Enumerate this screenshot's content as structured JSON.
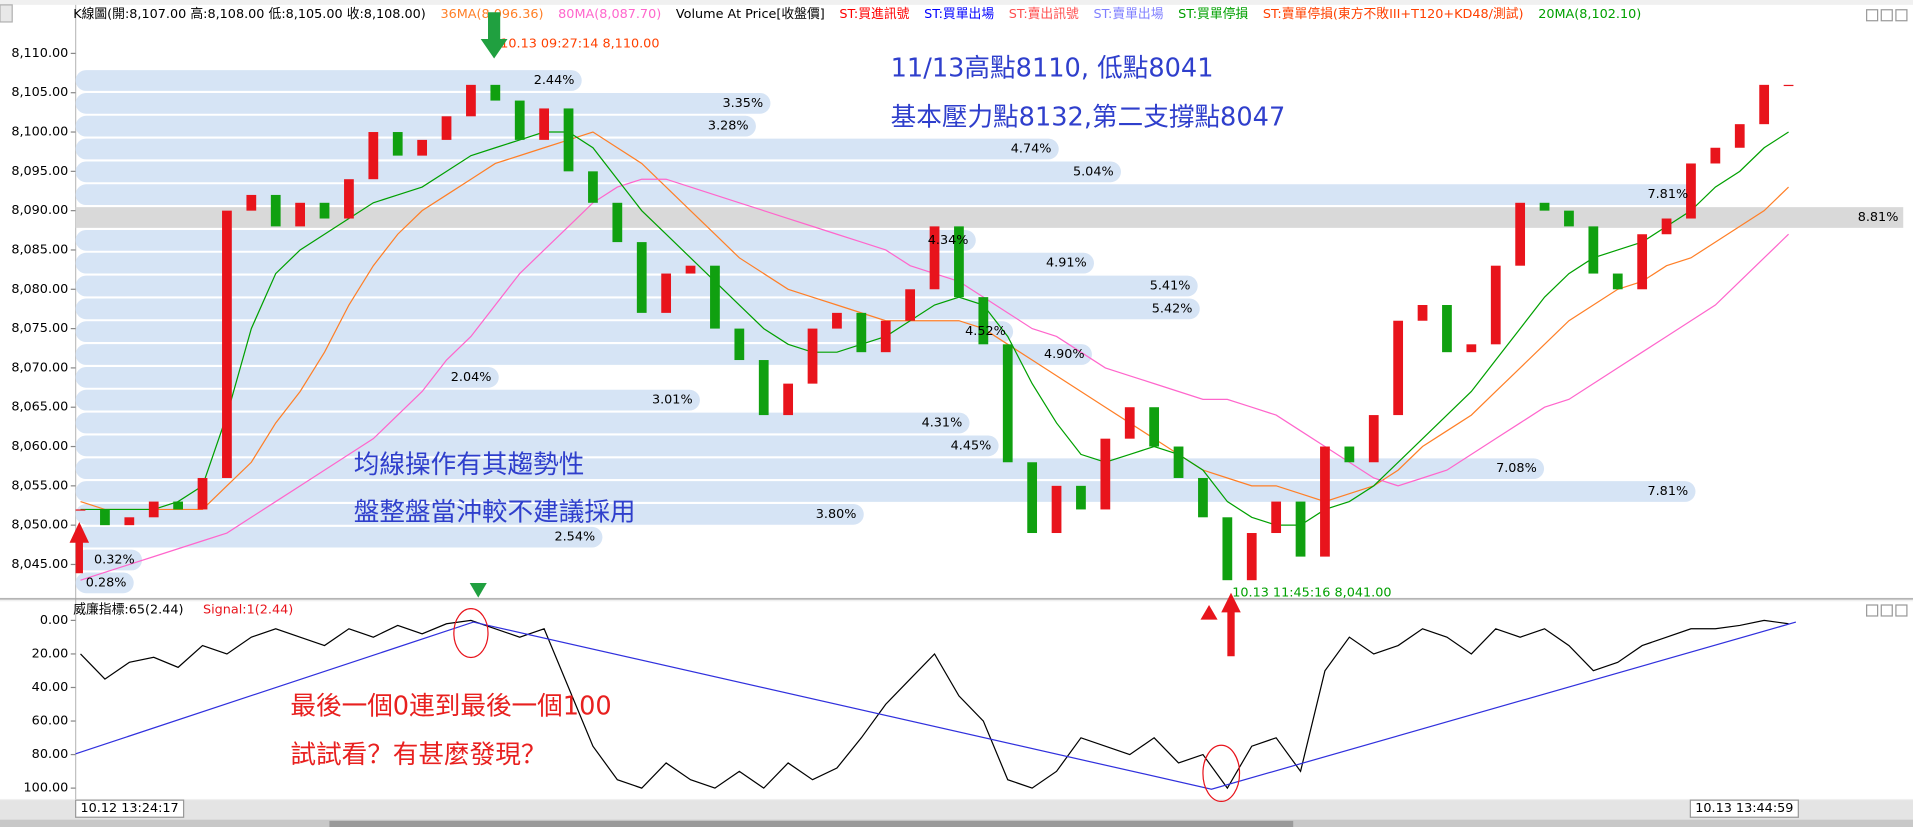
{
  "time_labels": [
    "10.12 13:24:17",
    "10.13 13:44:59"
  ],
  "chart_data": [
    {
      "type": "candlestick",
      "legend_items": [
        {
          "name": "K線圖(開:8,107.00 高:8,108.00 低:8,105.00 收:8,108.00)",
          "color": "#000000"
        },
        {
          "name": "Volume At Price[收盤價]",
          "color": "#000000"
        },
        {
          "name": "ST:買進訊號",
          "color": "#ff0000"
        },
        {
          "name": "ST:買單出場",
          "color": "#0000ff"
        },
        {
          "name": "ST:賣出訊號",
          "color": "#ff5050"
        },
        {
          "name": "ST:賣單出場",
          "color": "#8080ff"
        },
        {
          "name": "ST:買單停損",
          "color": "#00a000"
        },
        {
          "name": "ST:賣單停損(東方不敗III+T120+KD48/測試)",
          "color": "#ff4000"
        }
      ],
      "up_color": "#e8141c",
      "down_color": "#10a010",
      "ylim": [
        8040,
        8114
      ],
      "yticks": [
        {
          "value": 8045,
          "label": "8,045.00"
        },
        {
          "value": 8050,
          "label": "8,050.00"
        },
        {
          "value": 8055,
          "label": "8,055.00"
        },
        {
          "value": 8060,
          "label": "8,060.00"
        },
        {
          "value": 8065,
          "label": "8,065.00"
        },
        {
          "value": 8070,
          "label": "8,070.00"
        },
        {
          "value": 8075,
          "label": "8,075.00"
        },
        {
          "value": 8080,
          "label": "8,080.00"
        },
        {
          "value": 8085,
          "label": "8,085.00"
        },
        {
          "value": 8090,
          "label": "8,090.00"
        },
        {
          "value": 8095,
          "label": "8,095.00"
        },
        {
          "value": 8100,
          "label": "8,100.00"
        },
        {
          "value": 8105,
          "label": "8,105.00"
        },
        {
          "value": 8110,
          "label": "8,110.00"
        }
      ],
      "values": [
        8052,
        8050,
        8051,
        8053,
        8052,
        8056,
        8090,
        8092,
        8088,
        8091,
        8089,
        8094,
        8100,
        8097,
        8099,
        8102,
        8106,
        8104,
        8099,
        8103,
        8095,
        8091,
        8086,
        8077,
        8082,
        8083,
        8075,
        8071,
        8064,
        8068,
        8075,
        8077,
        8072,
        8076,
        8080,
        8088,
        8079,
        8073,
        8058,
        8049,
        8055,
        8052,
        8061,
        8065,
        8060,
        8056,
        8051,
        8043,
        8049,
        8053,
        8046,
        8060,
        8058,
        8064,
        8076,
        8078,
        8072,
        8073,
        8083,
        8091,
        8090,
        8088,
        8082,
        8080,
        8087,
        8089,
        8096,
        8098,
        8101,
        8106,
        8106
      ],
      "series": [
        {
          "name": "36MA(8,096.36)",
          "color": "#ff7f27",
          "values": [
            8053,
            8052,
            8052,
            8052,
            8052,
            8052,
            8055,
            8058,
            8063,
            8067,
            8072,
            8078,
            8083,
            8087,
            8090,
            8092,
            8094,
            8096,
            8097,
            8098,
            8099,
            8100,
            8098,
            8096,
            8093,
            8090,
            8087,
            8084,
            8082,
            8080,
            8079,
            8078,
            8077,
            8076,
            8076,
            8076,
            8076,
            8075,
            8073,
            8071,
            8069,
            8067,
            8065,
            8063,
            8061,
            8059,
            8057,
            8056,
            8055,
            8055,
            8054,
            8053,
            8054,
            8055,
            8057,
            8060,
            8062,
            8064,
            8067,
            8070,
            8073,
            8076,
            8078,
            8080,
            8081,
            8083,
            8084,
            8086,
            8088,
            8090,
            8093
          ]
        },
        {
          "name": "80MA(8,087.70)",
          "color": "#ff66cc",
          "values": [
            8043,
            8044,
            8045,
            8046,
            8047,
            8048,
            8049,
            8051,
            8053,
            8055,
            8057,
            8059,
            8061,
            8064,
            8067,
            8071,
            8074,
            8078,
            8082,
            8085,
            8088,
            8091,
            8093,
            8094,
            8094,
            8093,
            8092,
            8091,
            8090,
            8089,
            8088,
            8087,
            8086,
            8085,
            8083,
            8082,
            8081,
            8079,
            8077,
            8075,
            8074,
            8072,
            8070,
            8069,
            8068,
            8067,
            8066,
            8066,
            8065,
            8064,
            8062,
            8060,
            8058,
            8056,
            8055,
            8056,
            8057,
            8059,
            8061,
            8063,
            8065,
            8066,
            8068,
            8070,
            8072,
            8074,
            8076,
            8078,
            8081,
            8084,
            8087
          ]
        },
        {
          "name": "20MA(8,102.10)",
          "color": "#00a000",
          "values": [
            8052,
            8052,
            8052,
            8052,
            8053,
            8055,
            8064,
            8075,
            8082,
            8085,
            8087,
            8089,
            8091,
            8092,
            8093,
            8095,
            8097,
            8098,
            8099,
            8100,
            8100,
            8098,
            8094,
            8090,
            8087,
            8084,
            8081,
            8078,
            8075,
            8073,
            8072,
            8072,
            8073,
            8074,
            8076,
            8078,
            8079,
            8078,
            8074,
            8068,
            8063,
            8059,
            8058,
            8059,
            8060,
            8059,
            8057,
            8053,
            8051,
            8050,
            8050,
            8052,
            8053,
            8055,
            8058,
            8061,
            8064,
            8067,
            8071,
            8075,
            8079,
            8082,
            8084,
            8085,
            8086,
            8088,
            8090,
            8093,
            8095,
            8098,
            8100
          ]
        }
      ],
      "volume_at_price": {
        "values": [
          2.44,
          3.35,
          3.28,
          4.74,
          5.04,
          7.81,
          8.81,
          4.34,
          4.91,
          5.41,
          5.42,
          4.52,
          4.9,
          2.04,
          3.01,
          4.31,
          4.45,
          7.08,
          7.81,
          3.8,
          2.54,
          0.32,
          0.28
        ],
        "value_labels": [
          "2.44%",
          "3.35%",
          "3.28%",
          "4.74%",
          "5.04%",
          "7.81%",
          "8.81%",
          "4.34%",
          "4.91%",
          "5.41%",
          "5.42%",
          "4.52%",
          "4.90%",
          "2.04%",
          "3.01%",
          "4.31%",
          "4.45%",
          "7.08%",
          "7.81%",
          "3.80%",
          "2.54%",
          "0.32%",
          "0.28%"
        ]
      },
      "annotations": [
        {
          "text": "10.13 09:27:14  8,110.00",
          "color": "#ff4000"
        },
        {
          "text": "10.13 11:45:16  8,041.00",
          "color": "#00a000"
        },
        {
          "text": "11/13高點8110, 低點8041",
          "color": "#2f3fcc"
        },
        {
          "text": "基本壓力點8132,第二支撐點8047",
          "color": "#2f3fcc"
        },
        {
          "text": "均線操作有其趨勢性",
          "color": "#2f3fcc"
        },
        {
          "text": "盤整盤當沖較不建議採用",
          "color": "#2f3fcc"
        }
      ]
    },
    {
      "type": "line",
      "title": "威廉指標:65(2.44)",
      "subtitle": "Signal:1(2.44)",
      "color": "#000000",
      "ylim": [
        -7,
        105
      ],
      "inverted": true,
      "yticks": [
        {
          "value": 0,
          "label": "0.00"
        },
        {
          "value": 20,
          "label": "20.00"
        },
        {
          "value": 40,
          "label": "40.00"
        },
        {
          "value": 60,
          "label": "60.00"
        },
        {
          "value": 80,
          "label": "80.00"
        },
        {
          "value": 100,
          "label": "100.00"
        }
      ],
      "values": [
        20,
        35,
        25,
        22,
        28,
        15,
        20,
        10,
        5,
        10,
        15,
        5,
        10,
        3,
        8,
        2,
        0,
        5,
        10,
        5,
        40,
        75,
        95,
        100,
        85,
        95,
        100,
        90,
        100,
        85,
        95,
        88,
        70,
        50,
        35,
        20,
        45,
        60,
        95,
        100,
        90,
        70,
        75,
        80,
        70,
        85,
        80,
        100,
        75,
        70,
        90,
        30,
        10,
        20,
        15,
        5,
        10,
        20,
        5,
        10,
        5,
        15,
        30,
        25,
        15,
        10,
        5,
        5,
        3,
        0,
        2
      ],
      "annotations": [
        {
          "text": "最後一個0連到最後一個100",
          "color": "#e8201f"
        },
        {
          "text": "試試看？有甚麼發現？",
          "color": "#e8201f"
        }
      ]
    }
  ]
}
